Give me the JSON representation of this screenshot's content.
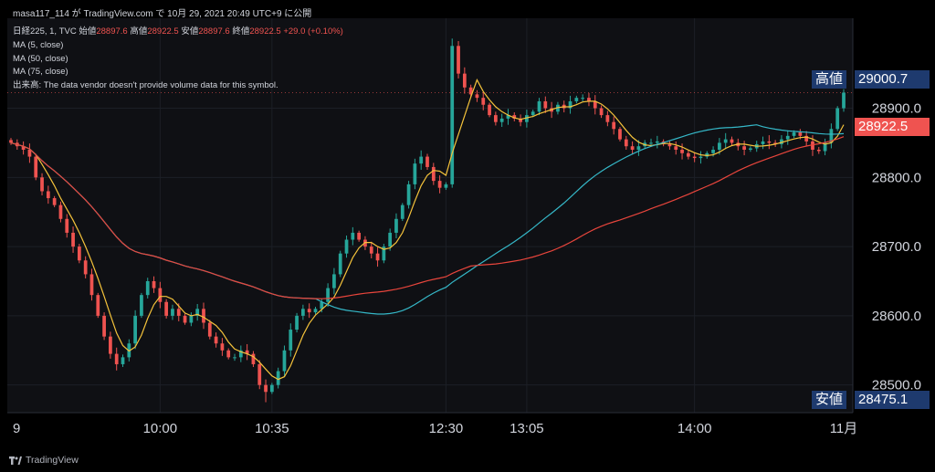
{
  "header": {
    "title": "masa117_114 が TradingView.com で 10月 29, 2021 20:49 UTC+9 に公開"
  },
  "legend": {
    "symbol": "日経225, 1, TVC",
    "ohlc": [
      {
        "label": "始値",
        "value": "28897.6"
      },
      {
        "label": "高値",
        "value": "28922.5"
      },
      {
        "label": "安値",
        "value": "28897.6"
      },
      {
        "label": "終値",
        "value": "28922.5"
      }
    ],
    "change": "+29.0 (+0.10%)",
    "ma5": "MA (5, close)",
    "ma50": "MA (50, close)",
    "ma75": "MA (75, close)",
    "volume_note": "出来高: The data vendor doesn't provide volume data for this symbol."
  },
  "badges": {
    "high_label": "高値",
    "high_value": "29000.7",
    "last_value": "28922.5",
    "low_label": "安値",
    "low_value": "28475.1"
  },
  "footer": {
    "brand": "TradingView"
  },
  "colors": {
    "up": "#26a69a",
    "down": "#ef5350",
    "ma5": "#f5c33b",
    "ma50": "#35b8c8",
    "ma75": "#e8453c",
    "grid": "#1c1f26",
    "axis_text": "#d1d4dc",
    "badge_bg": "#1e3a6e",
    "last_badge": "#ef5350"
  },
  "chart_data": {
    "type": "candlestick",
    "x_ticks": [
      "9",
      "10:00",
      "10:35",
      "12:30",
      "13:05",
      "14:00",
      "11月"
    ],
    "y_ticks": [
      28500.0,
      28600.0,
      28700.0,
      28800.0,
      28900.0
    ],
    "ylim": [
      28460,
      29030
    ],
    "high": 29000.7,
    "low": 28475.1,
    "last": 28922.5,
    "close_path": [
      28850,
      28845,
      28840,
      28830,
      28800,
      28780,
      28770,
      28760,
      28740,
      28720,
      28700,
      28680,
      28660,
      28630,
      28600,
      28570,
      28545,
      28530,
      28540,
      28560,
      28600,
      28630,
      28650,
      28640,
      28620,
      28600,
      28610,
      28600,
      28590,
      28600,
      28610,
      28590,
      28570,
      28560,
      28550,
      28540,
      28540,
      28550,
      28545,
      28530,
      28500,
      28490,
      28500,
      28520,
      28550,
      28580,
      28600,
      28610,
      28605,
      28610,
      28620,
      28640,
      28660,
      28690,
      28710,
      28720,
      28710,
      28700,
      28690,
      28680,
      28700,
      28720,
      28740,
      28760,
      28790,
      28820,
      28830,
      28815,
      28795,
      28785,
      28790,
      28990,
      28950,
      28930,
      28920,
      28915,
      28905,
      28890,
      28880,
      28885,
      28890,
      28885,
      28880,
      28890,
      28895,
      28910,
      28900,
      28895,
      28905,
      28900,
      28910,
      28915,
      28915,
      28910,
      28900,
      28890,
      28880,
      28870,
      28855,
      28845,
      28840,
      28845,
      28850,
      28850,
      28852,
      28848,
      28845,
      28840,
      28835,
      28830,
      28828,
      28830,
      28835,
      28840,
      28850,
      28855,
      28850,
      28845,
      28840,
      28842,
      28848,
      28852,
      28850,
      28848,
      28855,
      28860,
      28865,
      28860,
      28852,
      28840,
      28838,
      28850,
      28870,
      28900,
      28922.5
    ],
    "series": [
      {
        "name": "MA (5, close)"
      },
      {
        "name": "MA (50, close)"
      },
      {
        "name": "MA (75, close)"
      }
    ]
  }
}
